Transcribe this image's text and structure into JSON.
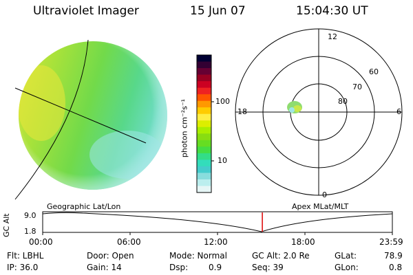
{
  "header": {
    "title": "Ultraviolet Imager",
    "date": "15 Jun 07",
    "time": "15:04:30 UT"
  },
  "colorbar": {
    "unit_label": "photon cm⁻²s⁻¹",
    "tick_labels": [
      "100",
      "10"
    ],
    "colors": [
      "#000033",
      "#330033",
      "#660033",
      "#990022",
      "#cc0022",
      "#ee2222",
      "#ff5500",
      "#ff9900",
      "#ffcc00",
      "#ffee44",
      "#ddee00",
      "#aaee00",
      "#88dd11",
      "#66dd22",
      "#44dd44",
      "#33dd88",
      "#33ddbb",
      "#44cccc",
      "#88dddd",
      "#bbeeee",
      "#e6f6f6"
    ]
  },
  "polar_plot": {
    "mlt_labels": {
      "top": "12",
      "bottom": "0",
      "left": "18",
      "right": "6"
    },
    "lat_labels": [
      "60",
      "70",
      "80"
    ]
  },
  "strip": {
    "left_title": "Geographic Lat/Lon",
    "right_title": "Apex  MLat/MLT",
    "y_axis_label": "GC Alt",
    "y_ticks": [
      "9.0",
      "1.8"
    ],
    "x_ticks": [
      "00:00",
      "06:00",
      "12:00",
      "18:00",
      "23:59"
    ],
    "marker_hours": 15.075,
    "marker_color": "#dd0000"
  },
  "info": {
    "flt": "Flt: LBHL",
    "ip": "IP: 36.0",
    "door": "Door: Open",
    "gain": "Gain: 14",
    "mode": "Mode: Normal",
    "dsp_label": "Dsp:",
    "dsp_value": "0.9",
    "gc_alt": "GC Alt: 2.0 Re",
    "seq": "Seq: 39",
    "glat_label": "GLat:",
    "glat_value": "78.9",
    "glon_label": "GLon:",
    "glon_value": "0.8"
  }
}
